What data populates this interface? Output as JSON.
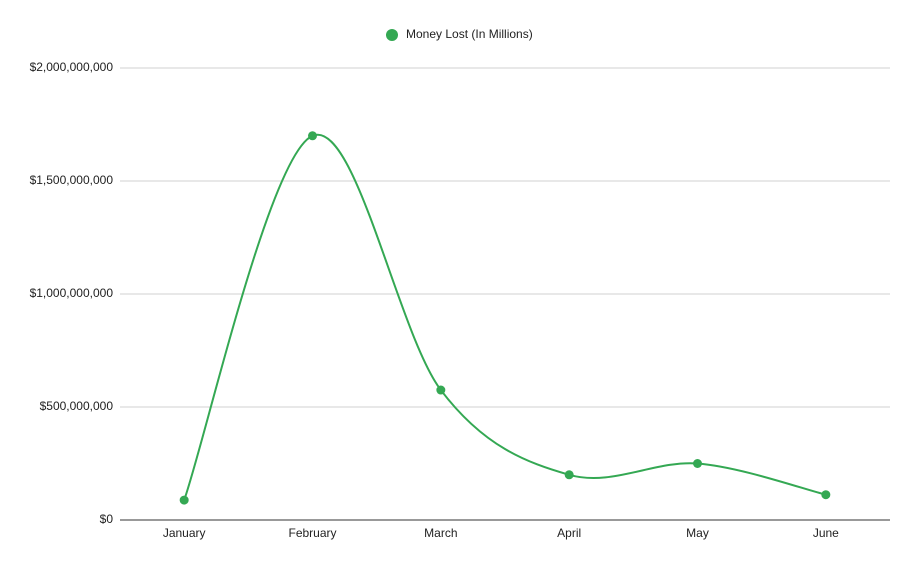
{
  "chart_data": {
    "type": "line",
    "categories": [
      "January",
      "February",
      "March",
      "April",
      "May",
      "June"
    ],
    "series": [
      {
        "name": "Money Lost (In Millions)",
        "color": "#34a853",
        "values": [
          88000000,
          1700000000,
          575000000,
          200000000,
          250000000,
          112000000
        ]
      }
    ],
    "ylim": [
      0,
      2000000000
    ],
    "yticks": [
      {
        "value": 0,
        "label": "$0"
      },
      {
        "value": 500000000,
        "label": "$500,000,000"
      },
      {
        "value": 1000000000,
        "label": "$1,000,000,000"
      },
      {
        "value": 1500000000,
        "label": "$1,500,000,000"
      },
      {
        "value": 2000000000,
        "label": "$2,000,000,000"
      }
    ],
    "grid": true,
    "legend": "top",
    "smooth": true
  }
}
